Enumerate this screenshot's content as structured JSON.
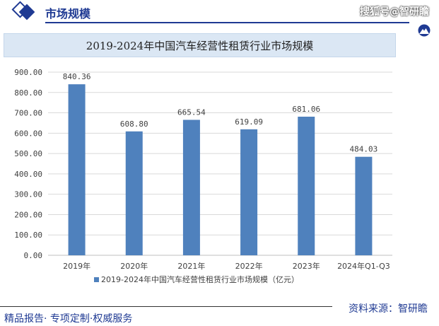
{
  "header": {
    "section_title": "市场规模",
    "watermark": "搜狐号@智研瞻"
  },
  "banner_title": "2019-2024年中国汽车经营性租赁行业市场规模",
  "chart_data": {
    "type": "bar",
    "categories": [
      "2019年",
      "2020年",
      "2021年",
      "2022年",
      "2023年",
      "2024年Q1-Q3"
    ],
    "series": [
      {
        "name": "2019-2024年中国汽车经营性租赁行业市场规模（亿元）",
        "values": [
          840.36,
          608.8,
          665.54,
          619.09,
          681.06,
          484.03
        ],
        "labels": [
          "840.36",
          "608.80",
          "665.54",
          "619.09",
          "681.06",
          "484.03"
        ]
      }
    ],
    "ylim": [
      0,
      900
    ],
    "yticks": [
      "0.00",
      "100.00",
      "200.00",
      "300.00",
      "400.00",
      "500.00",
      "600.00",
      "700.00",
      "800.00",
      "900.00"
    ],
    "grid": true,
    "legend_position": "bottom",
    "bar_color": "#4f81bd"
  },
  "footer": {
    "left_text": "精品报告· 专项定制·权威服务",
    "right_text": "资料来源：智研瞻"
  }
}
